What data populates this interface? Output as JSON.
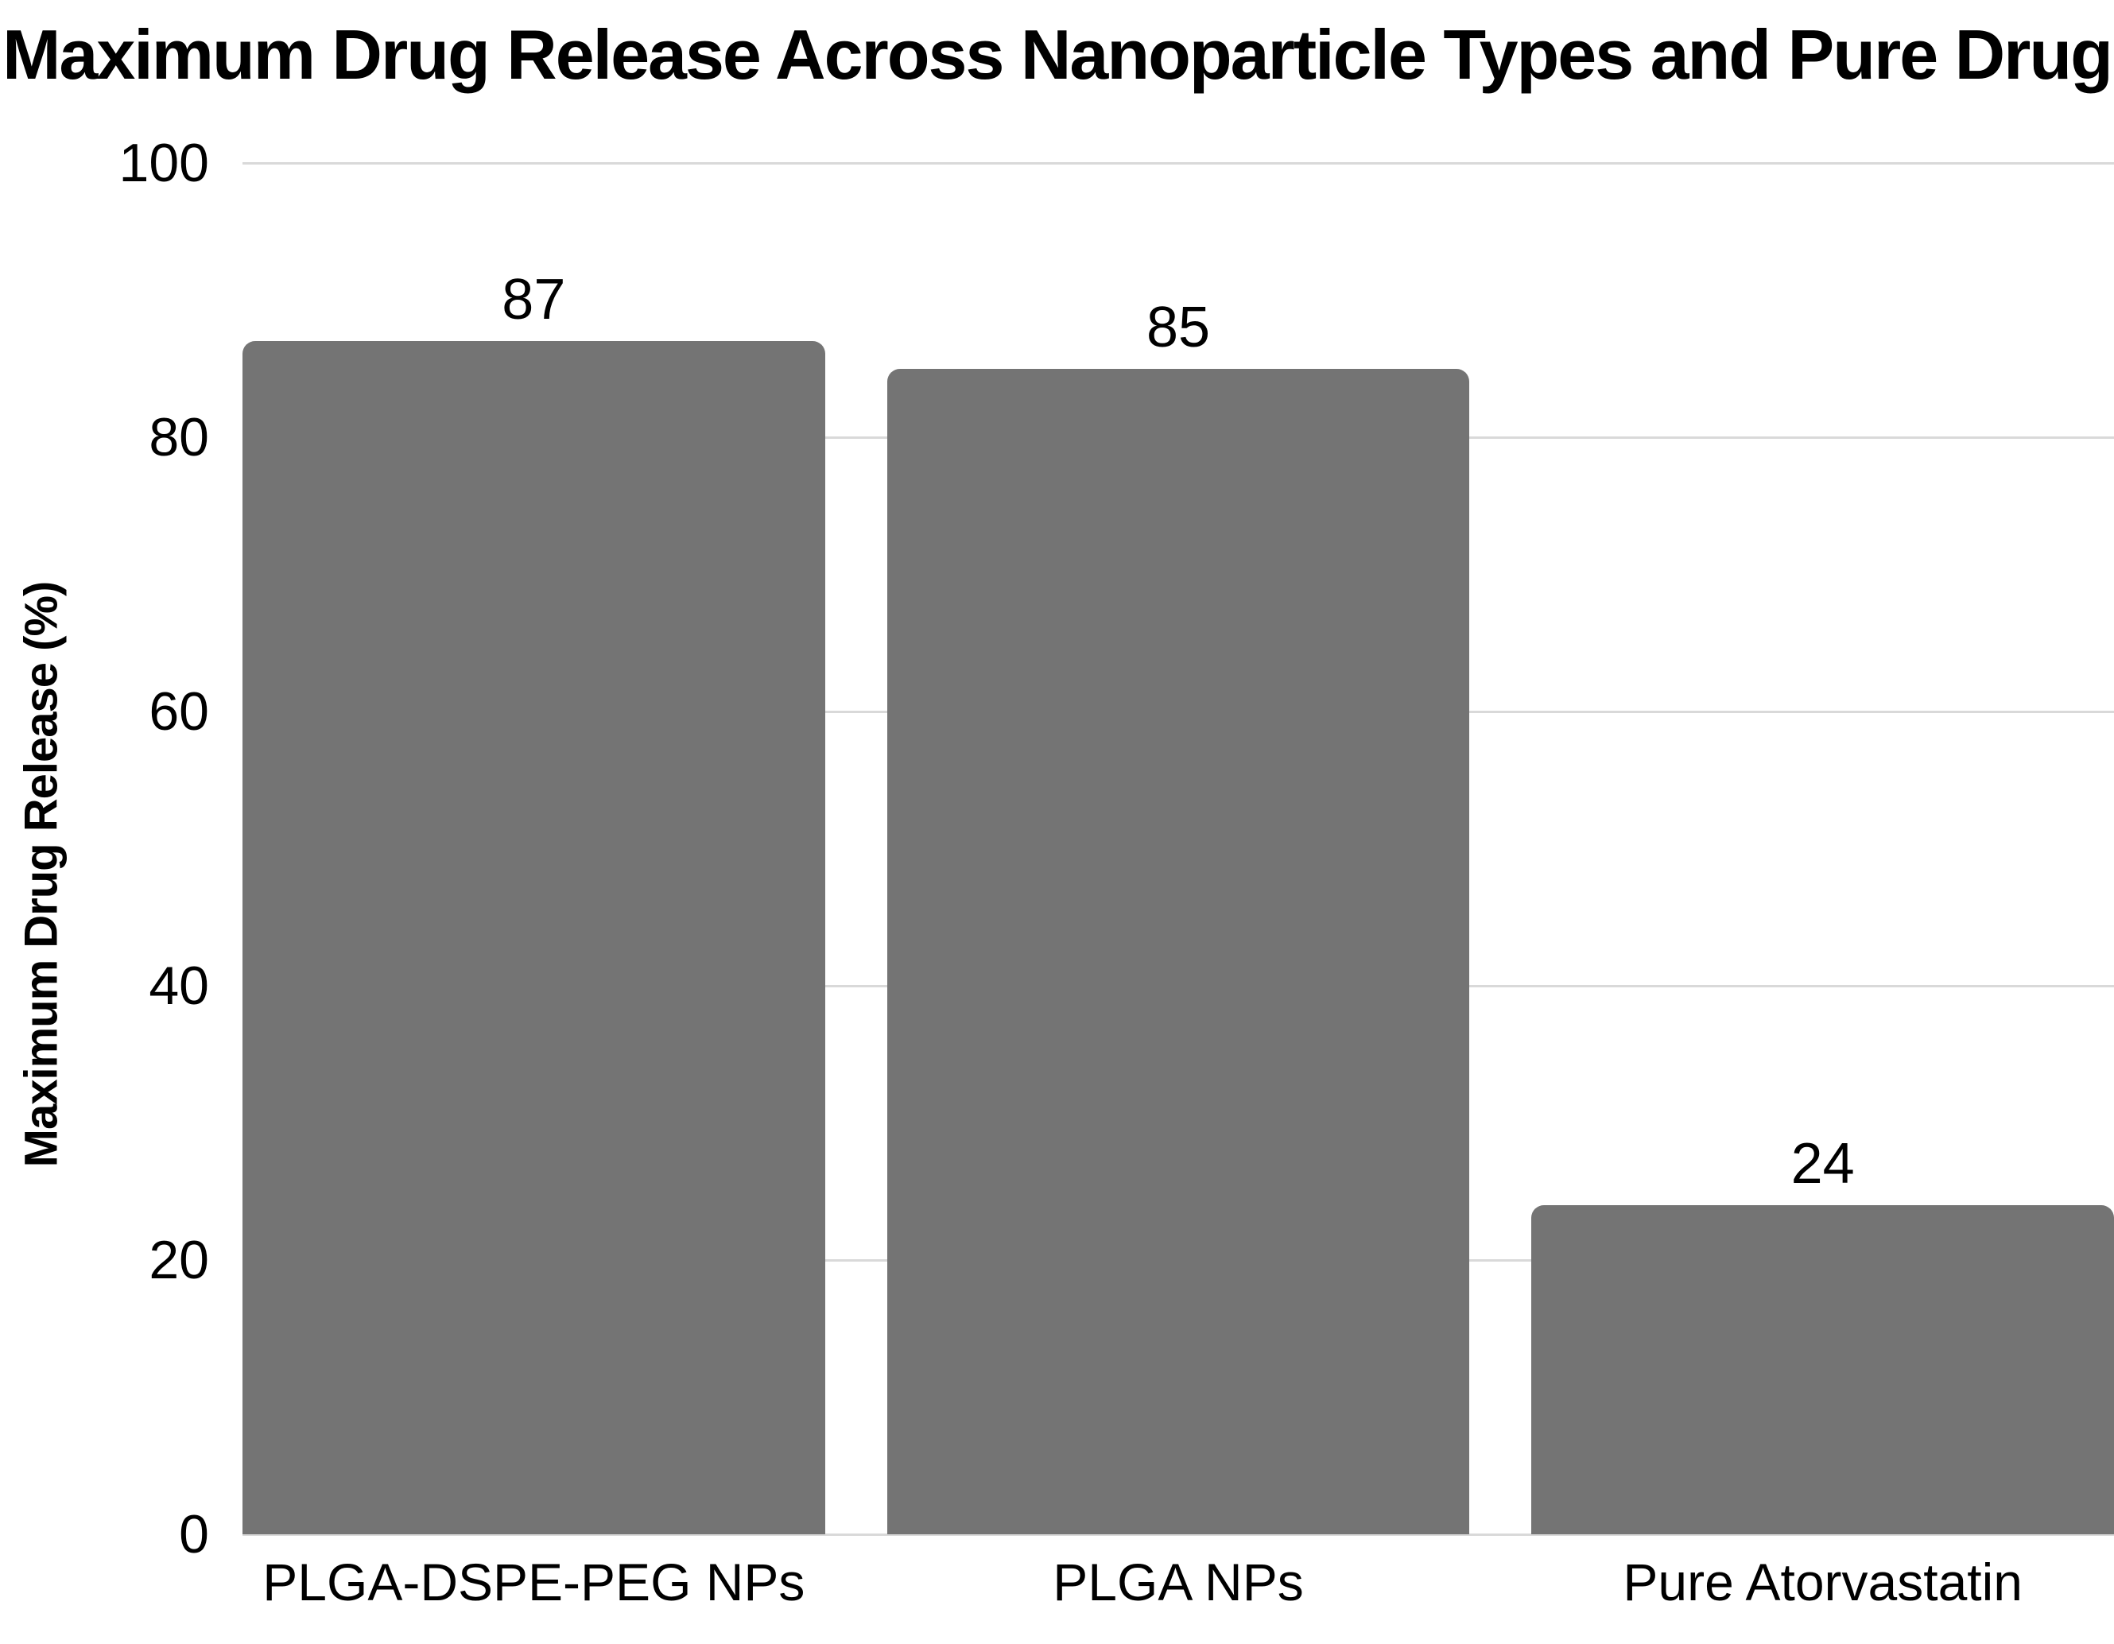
{
  "title": "Maximum Drug Release Across Nanoparticle Types and Pure Drug",
  "colors": {
    "background": "#ffffff",
    "bar": "#747474",
    "gridline": "#d9d9d9",
    "text": "#000000"
  },
  "chart_data": {
    "type": "bar",
    "title": "Maximum Drug Release Across Nanoparticle Types and Pure Drug",
    "categories": [
      "PLGA-DSPE-PEG NPs",
      "PLGA NPs",
      "Pure Atorvastatin"
    ],
    "values": [
      87,
      85,
      24
    ],
    "value_labels": [
      "87",
      "85",
      "24"
    ],
    "xlabel": "",
    "ylabel": "Maximum Drug Release (%)",
    "ylim": [
      0,
      100
    ],
    "yticks": [
      0,
      20,
      40,
      60,
      80,
      100
    ],
    "grid": "horizontal",
    "legend": "none",
    "bar_color": "#747474"
  }
}
